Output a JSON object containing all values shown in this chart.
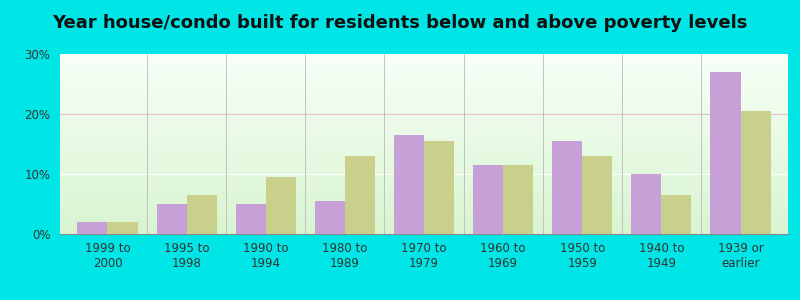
{
  "title": "Year house/condo built for residents below and above poverty levels",
  "categories": [
    "1999 to\n2000",
    "1995 to\n1998",
    "1990 to\n1994",
    "1980 to\n1989",
    "1970 to\n1979",
    "1960 to\n1969",
    "1950 to\n1959",
    "1940 to\n1949",
    "1939 or\nearlier"
  ],
  "below_poverty": [
    2.0,
    5.0,
    5.0,
    5.5,
    16.5,
    11.5,
    15.5,
    10.0,
    27.0
  ],
  "above_poverty": [
    2.0,
    6.5,
    9.5,
    13.0,
    15.5,
    11.5,
    13.0,
    6.5,
    20.5
  ],
  "below_color": "#c8a0d8",
  "above_color": "#c8d08c",
  "ylim": [
    0,
    30
  ],
  "yticks": [
    0,
    10,
    20,
    30
  ],
  "ytick_labels": [
    "0%",
    "10%",
    "20%",
    "30%"
  ],
  "outer_background": "#00e5e5",
  "title_fontsize": 13,
  "tick_fontsize": 8.5,
  "legend_fontsize": 9.5,
  "bar_width": 0.38
}
